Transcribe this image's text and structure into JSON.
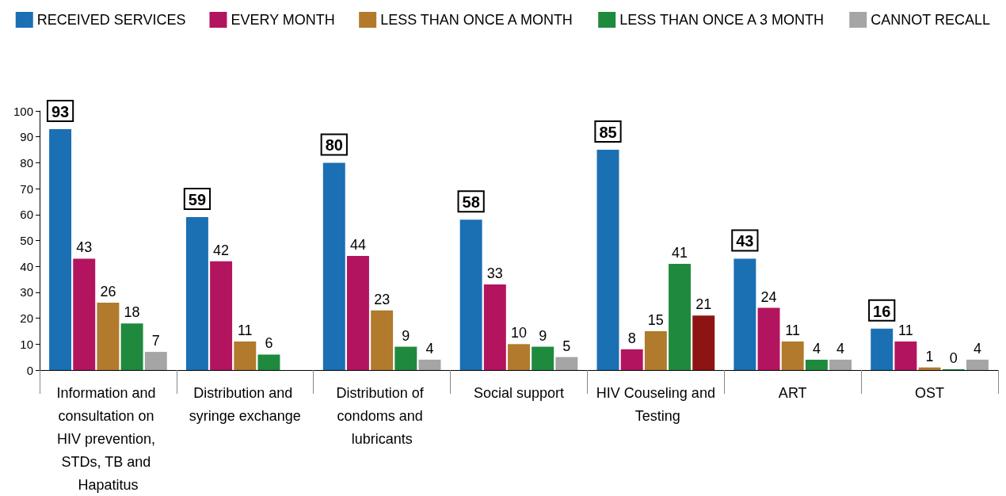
{
  "chart_data": {
    "type": "bar",
    "categories": [
      "Information and consultation on HIV prevention, STDs, TB and Hapatitus",
      "Distribution and syringe exchange",
      "Distribution of condoms and lubricants",
      "Social support",
      "HIV Couseling and Testing",
      "ART",
      "OST"
    ],
    "series": [
      {
        "name": "RECEIVED SERVICES",
        "color": "#1b6fb3",
        "values": [
          93,
          59,
          80,
          58,
          85,
          43,
          16
        ]
      },
      {
        "name": "EVERY MONTH",
        "color": "#b3145f",
        "values": [
          43,
          42,
          44,
          33,
          8,
          24,
          11
        ]
      },
      {
        "name": "LESS THAN ONCE A MONTH",
        "color": "#b27a2c",
        "values": [
          26,
          11,
          23,
          10,
          15,
          11,
          1
        ]
      },
      {
        "name": "LESS THAN ONCE A 3 MONTH",
        "color": "#1f8a3e",
        "values": [
          18,
          6,
          9,
          9,
          41,
          4,
          0
        ]
      },
      {
        "name": "CANNOT RECALL",
        "color": "#a5a5a5",
        "colors": [
          "#a5a5a5",
          "#a5a5a5",
          "#a5a5a5",
          "#a5a5a5",
          "#8e1414",
          "#a5a5a5",
          "#a5a5a5"
        ],
        "values": [
          7,
          null,
          4,
          5,
          21,
          4,
          4
        ]
      }
    ],
    "ylim": [
      0,
      100
    ],
    "yticks": [
      0,
      10,
      20,
      30,
      40,
      50,
      60,
      70,
      80,
      90,
      100
    ],
    "grid": false,
    "legend": "top",
    "data_labels": true
  }
}
